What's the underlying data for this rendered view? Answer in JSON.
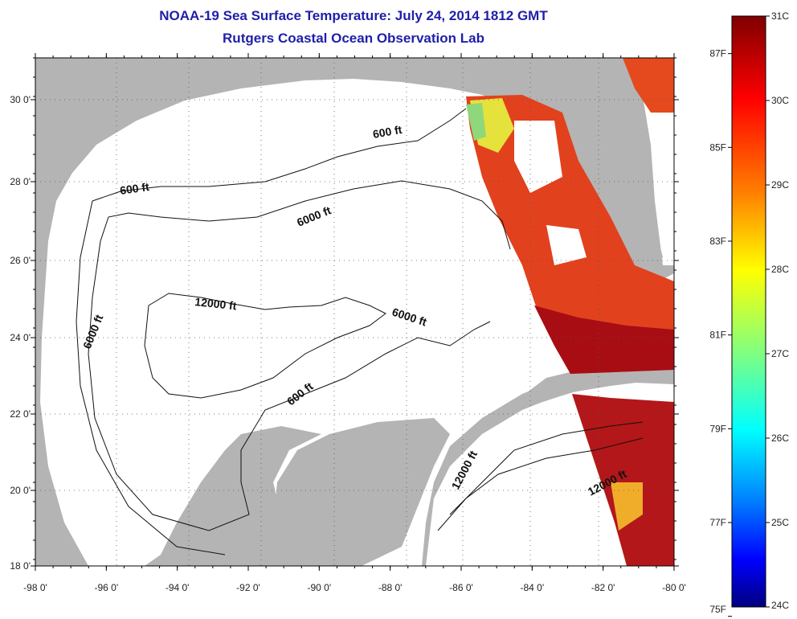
{
  "title": {
    "line1": "NOAA-19 Sea Surface Temperature:  July 24, 2014 1812 GMT",
    "line2": "Rutgers Coastal Ocean Observation Lab"
  },
  "axes": {
    "lon_ticks": [
      "-98 0'",
      "-96 0'",
      "-94 0'",
      "-92 0'",
      "-90 0'",
      "-88 0'",
      "-86 0'",
      "-84 0'",
      "-82 0'",
      "-80 0'"
    ],
    "lat_ticks": [
      "18 0'",
      "20 0'",
      "22 0'",
      "24 0'",
      "26 0'",
      "28 0'",
      "30 0'"
    ]
  },
  "contour_labels": [
    "600 ft",
    "600 ft",
    "600 ft",
    "6000 ft",
    "6000 ft",
    "6000 ft",
    "12000 ft",
    "12000 ft",
    "12000 ft"
  ],
  "colorbar": {
    "celsius": [
      "31C",
      "30C",
      "29C",
      "28C",
      "27C",
      "26C",
      "25C",
      "24C"
    ],
    "fahrenheit": [
      "87F",
      "85F",
      "83F",
      "81F",
      "79F",
      "77F",
      "75F"
    ],
    "gradient": [
      "#7f0000",
      "#ff0000",
      "#ff8000",
      "#ffff00",
      "#80ff80",
      "#00ffff",
      "#0080ff",
      "#0000ff",
      "#00007f"
    ]
  },
  "colors": {
    "land": "#b4b4b4",
    "water": "#ffffff",
    "title": "#1f1fa8"
  }
}
